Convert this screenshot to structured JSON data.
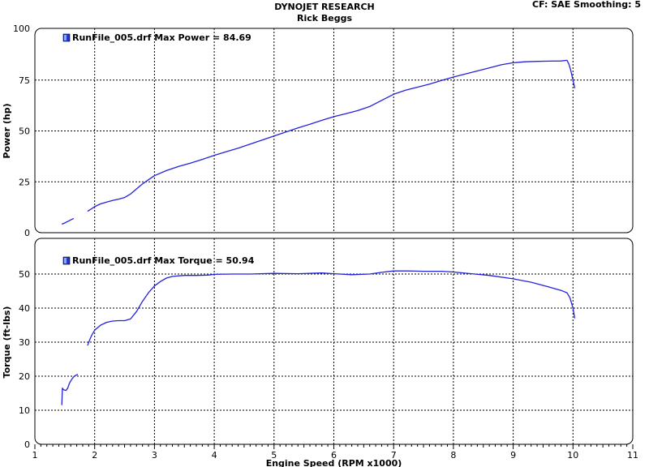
{
  "header": {
    "title": "DYNOJET RESEARCH",
    "subtitle": "Rick Beggs",
    "info": "CF: SAE  Smoothing: 5"
  },
  "colors": {
    "line": "#2222dd",
    "grid": "#000000",
    "panel_border": "#000000",
    "legend_swatch": "#1a3bcc"
  },
  "chart_data": [
    {
      "type": "line",
      "ylabel": "Power (hp)",
      "xlabel": "",
      "xlim": [
        1,
        11
      ],
      "ylim": [
        0,
        100
      ],
      "x_ticks": [
        "1",
        "2",
        "3",
        "4",
        "5",
        "6",
        "7",
        "8",
        "9",
        "10",
        "11"
      ],
      "y_ticks": [
        "0",
        "25",
        "50",
        "75",
        "100"
      ],
      "grid": true,
      "legend_position": "top-left",
      "legend": "RunFile_005.drf Max Power = 84.69",
      "series": [
        {
          "segments": [
            {
              "x": [
                1.45,
                1.5,
                1.55,
                1.6,
                1.65
              ],
              "y": [
                4.2,
                4.8,
                5.5,
                6.3,
                7.0
              ]
            },
            {
              "x": [
                1.88,
                1.95,
                2.0,
                2.1,
                2.2,
                2.3,
                2.4,
                2.5,
                2.6,
                2.7,
                2.8,
                2.9,
                3.0,
                3.2,
                3.4,
                3.6,
                3.8,
                4.0,
                4.2,
                4.4,
                4.6,
                4.8,
                5.0,
                5.2,
                5.4,
                5.6,
                5.8,
                6.0,
                6.2,
                6.4,
                6.6,
                6.8,
                7.0,
                7.2,
                7.4,
                7.6,
                7.8,
                8.0,
                8.2,
                8.4,
                8.6,
                8.8,
                9.0,
                9.2,
                9.4,
                9.6,
                9.8,
                9.9,
                9.93,
                9.96,
                10.0,
                10.03
              ],
              "y": [
                10.5,
                11.8,
                12.8,
                14.2,
                15.0,
                15.8,
                16.5,
                17.3,
                19.0,
                21.5,
                24.0,
                26.0,
                28.0,
                30.5,
                32.5,
                34.2,
                36.0,
                38.0,
                39.8,
                41.5,
                43.5,
                45.5,
                47.5,
                49.5,
                51.5,
                53.3,
                55.2,
                57.0,
                58.5,
                60.0,
                62.0,
                65.0,
                68.0,
                70.0,
                71.5,
                73.0,
                74.8,
                76.5,
                78.0,
                79.5,
                81.0,
                82.5,
                83.5,
                84.0,
                84.2,
                84.3,
                84.4,
                84.69,
                83.0,
                80.0,
                75.0,
                71.0
              ]
            }
          ]
        }
      ]
    },
    {
      "type": "line",
      "ylabel": "Torque (ft-lbs)",
      "xlabel": "Engine Speed (RPM x1000)",
      "xlim": [
        1,
        11
      ],
      "ylim": [
        0,
        60
      ],
      "x_ticks": [
        "1",
        "2",
        "3",
        "4",
        "5",
        "6",
        "7",
        "8",
        "9",
        "10",
        "11"
      ],
      "y_ticks": [
        "0",
        "10",
        "20",
        "30",
        "40",
        "50"
      ],
      "grid": true,
      "legend_position": "top-left",
      "legend": "RunFile_005.drf Max Torque = 50.94",
      "series": [
        {
          "segments": [
            {
              "x": [
                1.45,
                1.46,
                1.48,
                1.52,
                1.55,
                1.58,
                1.62,
                1.66,
                1.7,
                1.72
              ],
              "y": [
                11.5,
                16.5,
                16.0,
                15.8,
                16.5,
                18.0,
                19.2,
                20.0,
                20.4,
                20.5
              ]
            },
            {
              "x": [
                1.88,
                1.92,
                1.95,
                2.0,
                2.1,
                2.2,
                2.3,
                2.4,
                2.5,
                2.6,
                2.7,
                2.8,
                2.9,
                3.0,
                3.1,
                3.2,
                3.3,
                3.5,
                3.7,
                3.9,
                4.0,
                4.3,
                4.6,
                5.0,
                5.4,
                5.8,
                6.0,
                6.3,
                6.6,
                6.8,
                7.0,
                7.2,
                7.5,
                7.8,
                8.0,
                8.3,
                8.6,
                9.0,
                9.3,
                9.6,
                9.8,
                9.9,
                9.95,
                10.0,
                10.03
              ],
              "y": [
                29.0,
                30.8,
                32.0,
                33.5,
                35.0,
                35.8,
                36.2,
                36.3,
                36.3,
                36.8,
                39.0,
                42.0,
                44.5,
                46.5,
                47.8,
                48.8,
                49.3,
                49.6,
                49.6,
                49.7,
                49.9,
                50.0,
                50.0,
                50.2,
                50.1,
                50.3,
                50.1,
                49.8,
                50.0,
                50.5,
                50.9,
                50.94,
                50.8,
                50.8,
                50.6,
                50.1,
                49.6,
                48.6,
                47.6,
                46.2,
                45.2,
                44.5,
                43.0,
                40.0,
                37.0
              ]
            }
          ]
        }
      ]
    }
  ]
}
